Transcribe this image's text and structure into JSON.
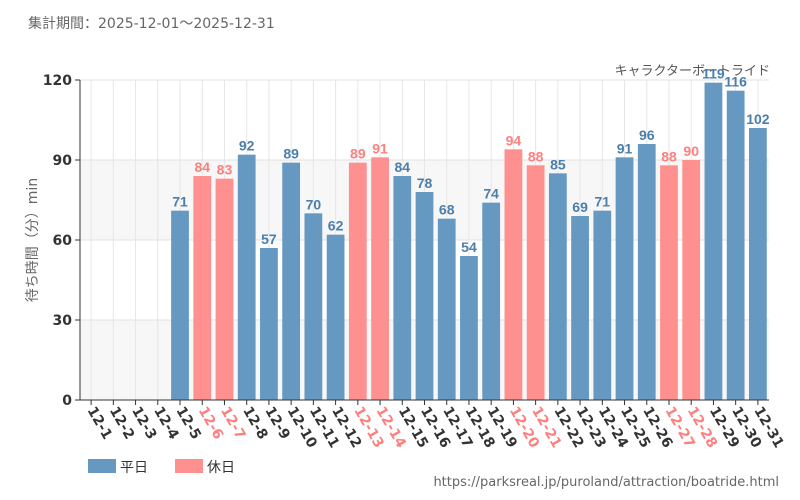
{
  "header": {
    "period": "集計期間：2025-12-01～2025-12-31",
    "attraction": "キャラクターボートライド"
  },
  "legend": {
    "weekday": "平日",
    "holiday": "休日"
  },
  "footer": {
    "url": "https://parksreal.jp/puroland/attraction/boatride.html"
  },
  "colors": {
    "weekday": "#6699c2",
    "holiday": "#ff9090",
    "weekday_label": "#4a7fac",
    "holiday_label": "#ff7f7f"
  },
  "chart_data": {
    "type": "bar",
    "title": "",
    "xlabel": "",
    "ylabel": "待ち時間（分）min",
    "ylim": [
      0,
      120
    ],
    "yticks": [
      0,
      30,
      60,
      90,
      120
    ],
    "categories": [
      "12-1",
      "12-2",
      "12-3",
      "12-4",
      "12-5",
      "12-6",
      "12-7",
      "12-8",
      "12-9",
      "12-10",
      "12-11",
      "12-12",
      "12-13",
      "12-14",
      "12-15",
      "12-16",
      "12-17",
      "12-18",
      "12-19",
      "12-20",
      "12-21",
      "12-22",
      "12-23",
      "12-24",
      "12-25",
      "12-26",
      "12-27",
      "12-28",
      "12-29",
      "12-30",
      "12-31"
    ],
    "values": [
      null,
      null,
      null,
      null,
      71,
      84,
      83,
      92,
      57,
      89,
      70,
      62,
      89,
      91,
      84,
      78,
      68,
      54,
      74,
      94,
      88,
      85,
      69,
      71,
      91,
      96,
      88,
      90,
      119,
      116,
      102
    ],
    "day_type": [
      "weekday",
      "weekday",
      "weekday",
      "weekday",
      "weekday",
      "holiday",
      "holiday",
      "weekday",
      "weekday",
      "weekday",
      "weekday",
      "weekday",
      "holiday",
      "holiday",
      "weekday",
      "weekday",
      "weekday",
      "weekday",
      "weekday",
      "holiday",
      "holiday",
      "weekday",
      "weekday",
      "weekday",
      "weekday",
      "weekday",
      "holiday",
      "holiday",
      "weekday",
      "weekday",
      "weekday"
    ],
    "series": [
      {
        "name": "平日",
        "day_type": "weekday"
      },
      {
        "name": "休日",
        "day_type": "holiday"
      }
    ]
  }
}
